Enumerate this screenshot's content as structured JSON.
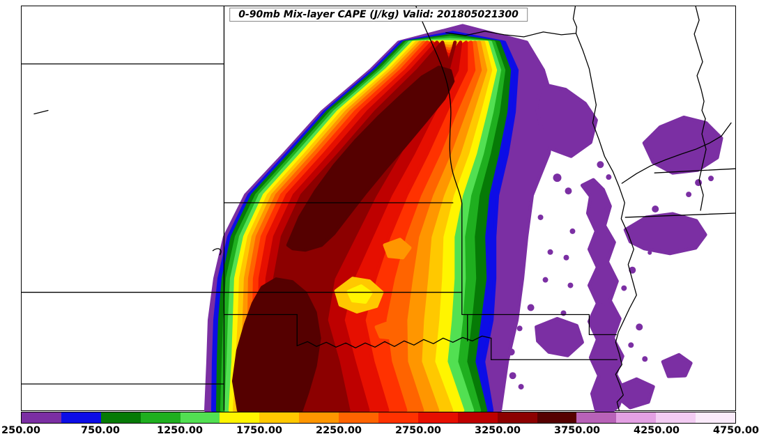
{
  "title": {
    "text": "0-90mb Mix-layer CAPE (J/kg) Valid: 201805021300"
  },
  "colorbar": {
    "min": 250,
    "max": 4750,
    "interval": 250,
    "ticks": [
      "250.00",
      "750.00",
      "1250.00",
      "1750.00",
      "2250.00",
      "2750.00",
      "3250.00",
      "3750.00",
      "4250.00",
      "4750.00"
    ],
    "levels": [
      250,
      500,
      750,
      1000,
      1250,
      1500,
      1750,
      2000,
      2250,
      2500,
      2750,
      3000,
      3250,
      3500,
      3750,
      4000,
      4250,
      4500
    ],
    "colors": [
      "#7B2FA3",
      "#0D0DE6",
      "#067A06",
      "#1FAF1F",
      "#52E052",
      "#FFF500",
      "#FFC800",
      "#FF9600",
      "#FF6400",
      "#FF3200",
      "#E60F00",
      "#BE0000",
      "#8C0000",
      "#550000",
      "#B862B8",
      "#E3A0E3",
      "#F3CCF3",
      "#FAEBFA"
    ]
  },
  "chart_data": {
    "type": "heatmap",
    "subtype": "filled_contour_map",
    "title": "0-90mb Mix-layer CAPE (J/kg)",
    "valid_label": "Valid: 201805021300",
    "units": "J/kg",
    "contour_interval": 250,
    "value_range": [
      250,
      4750
    ],
    "field": {
      "row_y": [
        590,
        520,
        460,
        400,
        340,
        280,
        220,
        160,
        100,
        60
      ],
      "levels": [
        250,
        500,
        750,
        1000,
        1250,
        1500,
        1750,
        2000,
        2250,
        2500,
        2750,
        3000,
        3250
      ],
      "top_y": [
        36,
        46,
        50,
        53,
        56,
        59,
        62,
        66,
        70,
        74,
        79,
        85,
        93
      ],
      "west": [
        [
          295,
          298,
          300,
          308,
          322,
          352,
          408,
          462,
          532,
          572
        ],
        [
          305,
          306,
          308,
          314,
          328,
          357,
          412,
          466,
          536,
          576
        ],
        [
          312,
          313,
          315,
          320,
          333,
          362,
          417,
          470,
          540,
          580
        ],
        [
          318,
          320,
          322,
          326,
          339,
          368,
          422,
          475,
          545,
          584
        ],
        [
          324,
          327,
          329,
          332,
          345,
          373,
          427,
          480,
          549,
          588
        ],
        [
          330,
          334,
          336,
          338,
          351,
          379,
          433,
          485,
          554,
          593
        ],
        [
          336,
          340,
          343,
          345,
          357,
          385,
          439,
          491,
          559,
          598
        ],
        [
          342,
          347,
          350,
          352,
          363,
          391,
          445,
          497,
          564,
          603
        ],
        [
          348,
          354,
          357,
          358,
          369,
          397,
          451,
          503,
          570,
          608
        ],
        [
          356,
          361,
          364,
          365,
          376,
          404,
          458,
          510,
          576,
          613
        ],
        [
          364,
          370,
          372,
          373,
          384,
          412,
          466,
          518,
          583,
          620
        ],
        [
          374,
          381,
          382,
          383,
          394,
          422,
          476,
          528,
          591,
          627
        ],
        [
          385,
          392,
          393,
          394,
          405,
          433,
          487,
          539,
          600,
          635
        ]
      ],
      "east": [
        [
          718,
          728,
          742,
          750,
          756,
          764,
          788,
          798,
          780,
          756
        ],
        [
          706,
          694,
          706,
          710,
          710,
          714,
          728,
          738,
          742,
          724
        ],
        [
          697,
          680,
          688,
          696,
          694,
          700,
          714,
          726,
          731,
          716
        ],
        [
          688,
          668,
          675,
          681,
          679,
          686,
          702,
          715,
          723,
          709
        ],
        [
          678,
          655,
          662,
          666,
          665,
          674,
          692,
          706,
          717,
          704
        ],
        [
          664,
          640,
          646,
          650,
          650,
          662,
          682,
          697,
          711,
          699
        ],
        [
          648,
          622,
          628,
          632,
          634,
          649,
          671,
          688,
          704,
          694
        ],
        [
          628,
          603,
          606,
          612,
          617,
          635,
          659,
          678,
          697,
          688
        ],
        [
          606,
          583,
          582,
          590,
          599,
          619,
          645,
          667,
          689,
          682
        ],
        [
          582,
          560,
          552,
          564,
          580,
          602,
          630,
          654,
          680,
          676
        ],
        [
          556,
          535,
          522,
          538,
          558,
          583,
          613,
          640,
          669,
          669
        ],
        [
          528,
          508,
          492,
          506,
          533,
          560,
          593,
          623,
          656,
          661
        ],
        [
          500,
          485,
          468,
          478,
          508,
          538,
          573,
          606,
          643,
          653
        ]
      ],
      "cores": [
        {
          "level": 3500,
          "points": [
            [
              342,
              590
            ],
            [
              335,
              548
            ],
            [
              341,
              504
            ],
            [
              352,
              466
            ],
            [
              363,
              436
            ],
            [
              376,
              413
            ],
            [
              396,
              401
            ],
            [
              419,
              405
            ],
            [
              438,
              421
            ],
            [
              452,
              449
            ],
            [
              458,
              486
            ],
            [
              452,
              526
            ],
            [
              441,
              564
            ],
            [
              432,
              590
            ]
          ]
        },
        {
          "level": 3500,
          "points": [
            [
              413,
              352
            ],
            [
              430,
              312
            ],
            [
              453,
              274
            ],
            [
              480,
              237
            ],
            [
              510,
              202
            ],
            [
              543,
              168
            ],
            [
              576,
              137
            ],
            [
              606,
              110
            ],
            [
              630,
              96
            ],
            [
              646,
              101
            ],
            [
              650,
              116
            ],
            [
              637,
              141
            ],
            [
              611,
              173
            ],
            [
              581,
              209
            ],
            [
              551,
              244
            ],
            [
              523,
              278
            ],
            [
              499,
              309
            ],
            [
              479,
              335
            ],
            [
              461,
              352
            ],
            [
              438,
              359
            ],
            [
              420,
              357
            ]
          ]
        }
      ],
      "patches": [
        {
          "level": 1750,
          "points": [
            [
              482,
              418
            ],
            [
              506,
              400
            ],
            [
              530,
              404
            ],
            [
              548,
              420
            ],
            [
              540,
              440
            ],
            [
              512,
              448
            ],
            [
              488,
              438
            ]
          ]
        },
        {
          "level": 1500,
          "points": [
            [
              500,
              419
            ],
            [
              518,
              411
            ],
            [
              532,
              421
            ],
            [
              524,
              434
            ],
            [
              506,
              432
            ]
          ]
        },
        {
          "level": 2000,
          "points": [
            [
              552,
              352
            ],
            [
              574,
              344
            ],
            [
              588,
              356
            ],
            [
              578,
              370
            ],
            [
              558,
              368
            ]
          ]
        },
        {
          "level": 2250,
          "points": [
            [
              540,
              470
            ],
            [
              562,
              462
            ],
            [
              576,
              472
            ],
            [
              566,
              486
            ],
            [
              546,
              484
            ]
          ]
        }
      ],
      "satellites": [
        {
          "level": 250,
          "points": [
            [
              778,
              120
            ],
            [
              812,
              128
            ],
            [
              840,
              148
            ],
            [
              856,
              172
            ],
            [
              848,
              204
            ],
            [
              820,
              224
            ],
            [
              793,
              214
            ],
            [
              778,
              188
            ],
            [
              770,
              152
            ]
          ]
        },
        {
          "level": 250,
          "points": [
            [
              836,
              266
            ],
            [
              852,
              258
            ],
            [
              866,
              272
            ],
            [
              876,
              296
            ],
            [
              868,
              324
            ],
            [
              882,
              348
            ],
            [
              872,
              376
            ],
            [
              886,
              404
            ],
            [
              876,
              432
            ],
            [
              890,
              458
            ],
            [
              880,
              486
            ],
            [
              894,
              512
            ],
            [
              884,
              538
            ],
            [
              896,
              562
            ],
            [
              888,
              584
            ],
            [
              880,
              590
            ],
            [
              856,
              590
            ],
            [
              850,
              566
            ],
            [
              860,
              540
            ],
            [
              848,
              514
            ],
            [
              858,
              488
            ],
            [
              846,
              462
            ],
            [
              858,
              436
            ],
            [
              846,
              410
            ],
            [
              858,
              384
            ],
            [
              846,
              358
            ],
            [
              856,
              332
            ],
            [
              844,
              306
            ],
            [
              848,
              282
            ]
          ]
        },
        {
          "level": 250,
          "points": [
            [
              925,
              205
            ],
            [
              948,
              182
            ],
            [
              982,
              168
            ],
            [
              1014,
              176
            ],
            [
              1036,
              198
            ],
            [
              1030,
              226
            ],
            [
              1002,
              244
            ],
            [
              966,
              248
            ],
            [
              938,
              233
            ]
          ]
        },
        {
          "level": 250,
          "points": [
            [
              898,
              330
            ],
            [
              928,
              312
            ],
            [
              966,
              307
            ],
            [
              1000,
              317
            ],
            [
              1013,
              337
            ],
            [
              999,
              356
            ],
            [
              962,
              364
            ],
            [
              925,
              357
            ],
            [
              905,
              347
            ]
          ]
        },
        {
          "level": 250,
          "points": [
            [
              770,
              470
            ],
            [
              800,
              458
            ],
            [
              828,
              468
            ],
            [
              836,
              492
            ],
            [
              815,
              511
            ],
            [
              788,
              506
            ],
            [
              772,
              490
            ]
          ]
        },
        {
          "level": 250,
          "points": [
            [
              888,
              556
            ],
            [
              914,
              545
            ],
            [
              938,
              556
            ],
            [
              931,
              578
            ],
            [
              905,
              586
            ],
            [
              889,
              573
            ]
          ]
        },
        {
          "level": 250,
          "points": [
            [
              952,
              520
            ],
            [
              975,
              510
            ],
            [
              992,
              522
            ],
            [
              984,
              540
            ],
            [
              960,
              541
            ]
          ]
        }
      ],
      "speckles": [
        [
          800,
          255,
          6
        ],
        [
          816,
          274,
          5
        ],
        [
          776,
          312,
          4
        ],
        [
          762,
          442,
          5
        ],
        [
          746,
          472,
          4
        ],
        [
          734,
          506,
          5
        ],
        [
          862,
          236,
          5
        ],
        [
          874,
          254,
          4
        ],
        [
          790,
          362,
          4
        ],
        [
          783,
          402,
          4
        ],
        [
          908,
          388,
          5
        ],
        [
          896,
          414,
          4
        ],
        [
          918,
          470,
          5
        ],
        [
          906,
          496,
          4
        ],
        [
          926,
          516,
          4
        ],
        [
          941,
          300,
          5
        ],
        [
          1003,
          262,
          5
        ],
        [
          989,
          279,
          4
        ],
        [
          1021,
          256,
          4
        ],
        [
          933,
          363,
          3
        ],
        [
          822,
          332,
          4
        ],
        [
          813,
          370,
          4
        ],
        [
          819,
          410,
          4
        ],
        [
          809,
          450,
          4
        ],
        [
          736,
          540,
          5
        ],
        [
          748,
          556,
          4
        ],
        [
          872,
          300,
          4
        ],
        [
          864,
          440,
          4
        ]
      ]
    }
  }
}
